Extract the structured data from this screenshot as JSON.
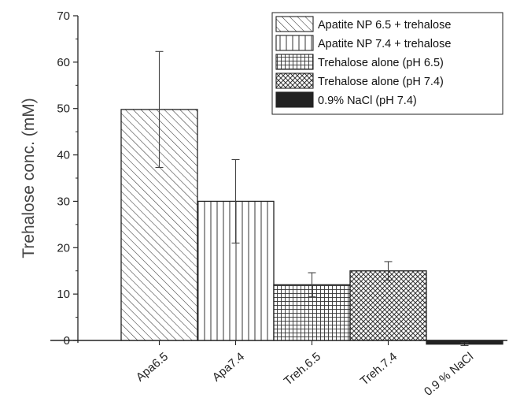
{
  "chart_data": {
    "type": "bar",
    "title": "",
    "xlabel": "",
    "ylabel": "Trehalose conc. (mM)",
    "ylim": [
      0,
      70
    ],
    "yticks": [
      0,
      10,
      20,
      30,
      40,
      50,
      60,
      70
    ],
    "categories": [
      "Apa6.5",
      "Apa7.4",
      "Treh.6.5",
      "Treh.7.4",
      "0.9 % NaCl"
    ],
    "values": [
      49.8,
      30.0,
      12.0,
      15.0,
      -0.8
    ],
    "errors": [
      12.5,
      9.0,
      2.6,
      2.0,
      0.3
    ],
    "patterns": [
      "diag",
      "vert",
      "grid",
      "cross",
      "solid"
    ],
    "legend": {
      "position": "top-right",
      "entries": [
        {
          "label": "Apatite NP 6.5 + trehalose",
          "pattern": "diag"
        },
        {
          "label": "Apatite NP 7.4 + trehalose",
          "pattern": "vert"
        },
        {
          "label": "Trehalose alone (pH 6.5)",
          "pattern": "grid"
        },
        {
          "label": "Trehalose alone (pH 7.4)",
          "pattern": "cross"
        },
        {
          "label": "0.9% NaCl (pH 7.4)",
          "pattern": "solid"
        }
      ]
    },
    "colors": {
      "stroke": "#222222",
      "fill": "#ffffff",
      "solid": "#222222"
    },
    "grid": false
  }
}
